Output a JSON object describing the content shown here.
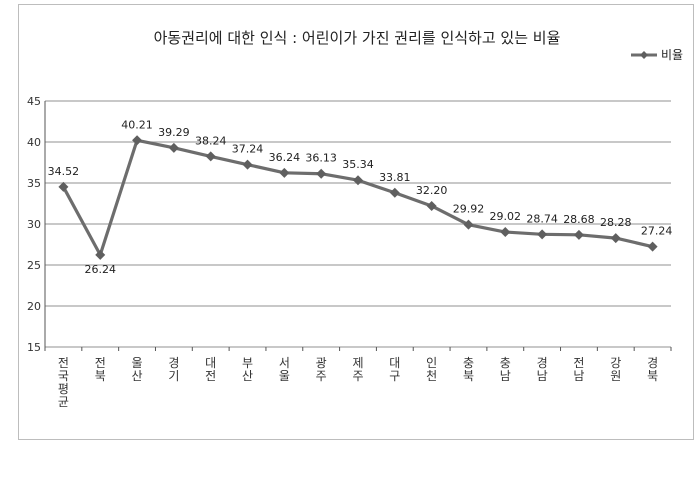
{
  "chart_data": {
    "type": "line",
    "title": "아동권리에 대한 인식 : 어린이가 가진 권리를 인식하고 있는 비율",
    "categories": [
      "전국평균",
      "전북",
      "울산",
      "경기",
      "대전",
      "부산",
      "서울",
      "광주",
      "제주",
      "대구",
      "인천",
      "충북",
      "충남",
      "경남",
      "전남",
      "강원",
      "경북"
    ],
    "series": [
      {
        "name": "비율",
        "values": [
          34.52,
          26.24,
          40.21,
          39.29,
          38.24,
          37.24,
          36.24,
          36.13,
          35.34,
          33.81,
          32.2,
          29.92,
          29.02,
          28.74,
          28.68,
          28.28,
          27.24
        ],
        "labels": [
          "34.52",
          "26.24",
          "40.21",
          "39.29",
          "38.24",
          "37.24",
          "36.24",
          "36.13",
          "35.34",
          "33.81",
          "32.20",
          "29.92",
          "29.02",
          "28.74",
          "28.68",
          "28.28",
          "27.24"
        ]
      }
    ],
    "ylim": [
      15,
      45
    ],
    "yticks": [
      15,
      20,
      25,
      30,
      35,
      40,
      45
    ],
    "grid": true,
    "legend": "top-right",
    "line_color": "#6d6d6d",
    "grid_color": "#a8a8a8"
  }
}
